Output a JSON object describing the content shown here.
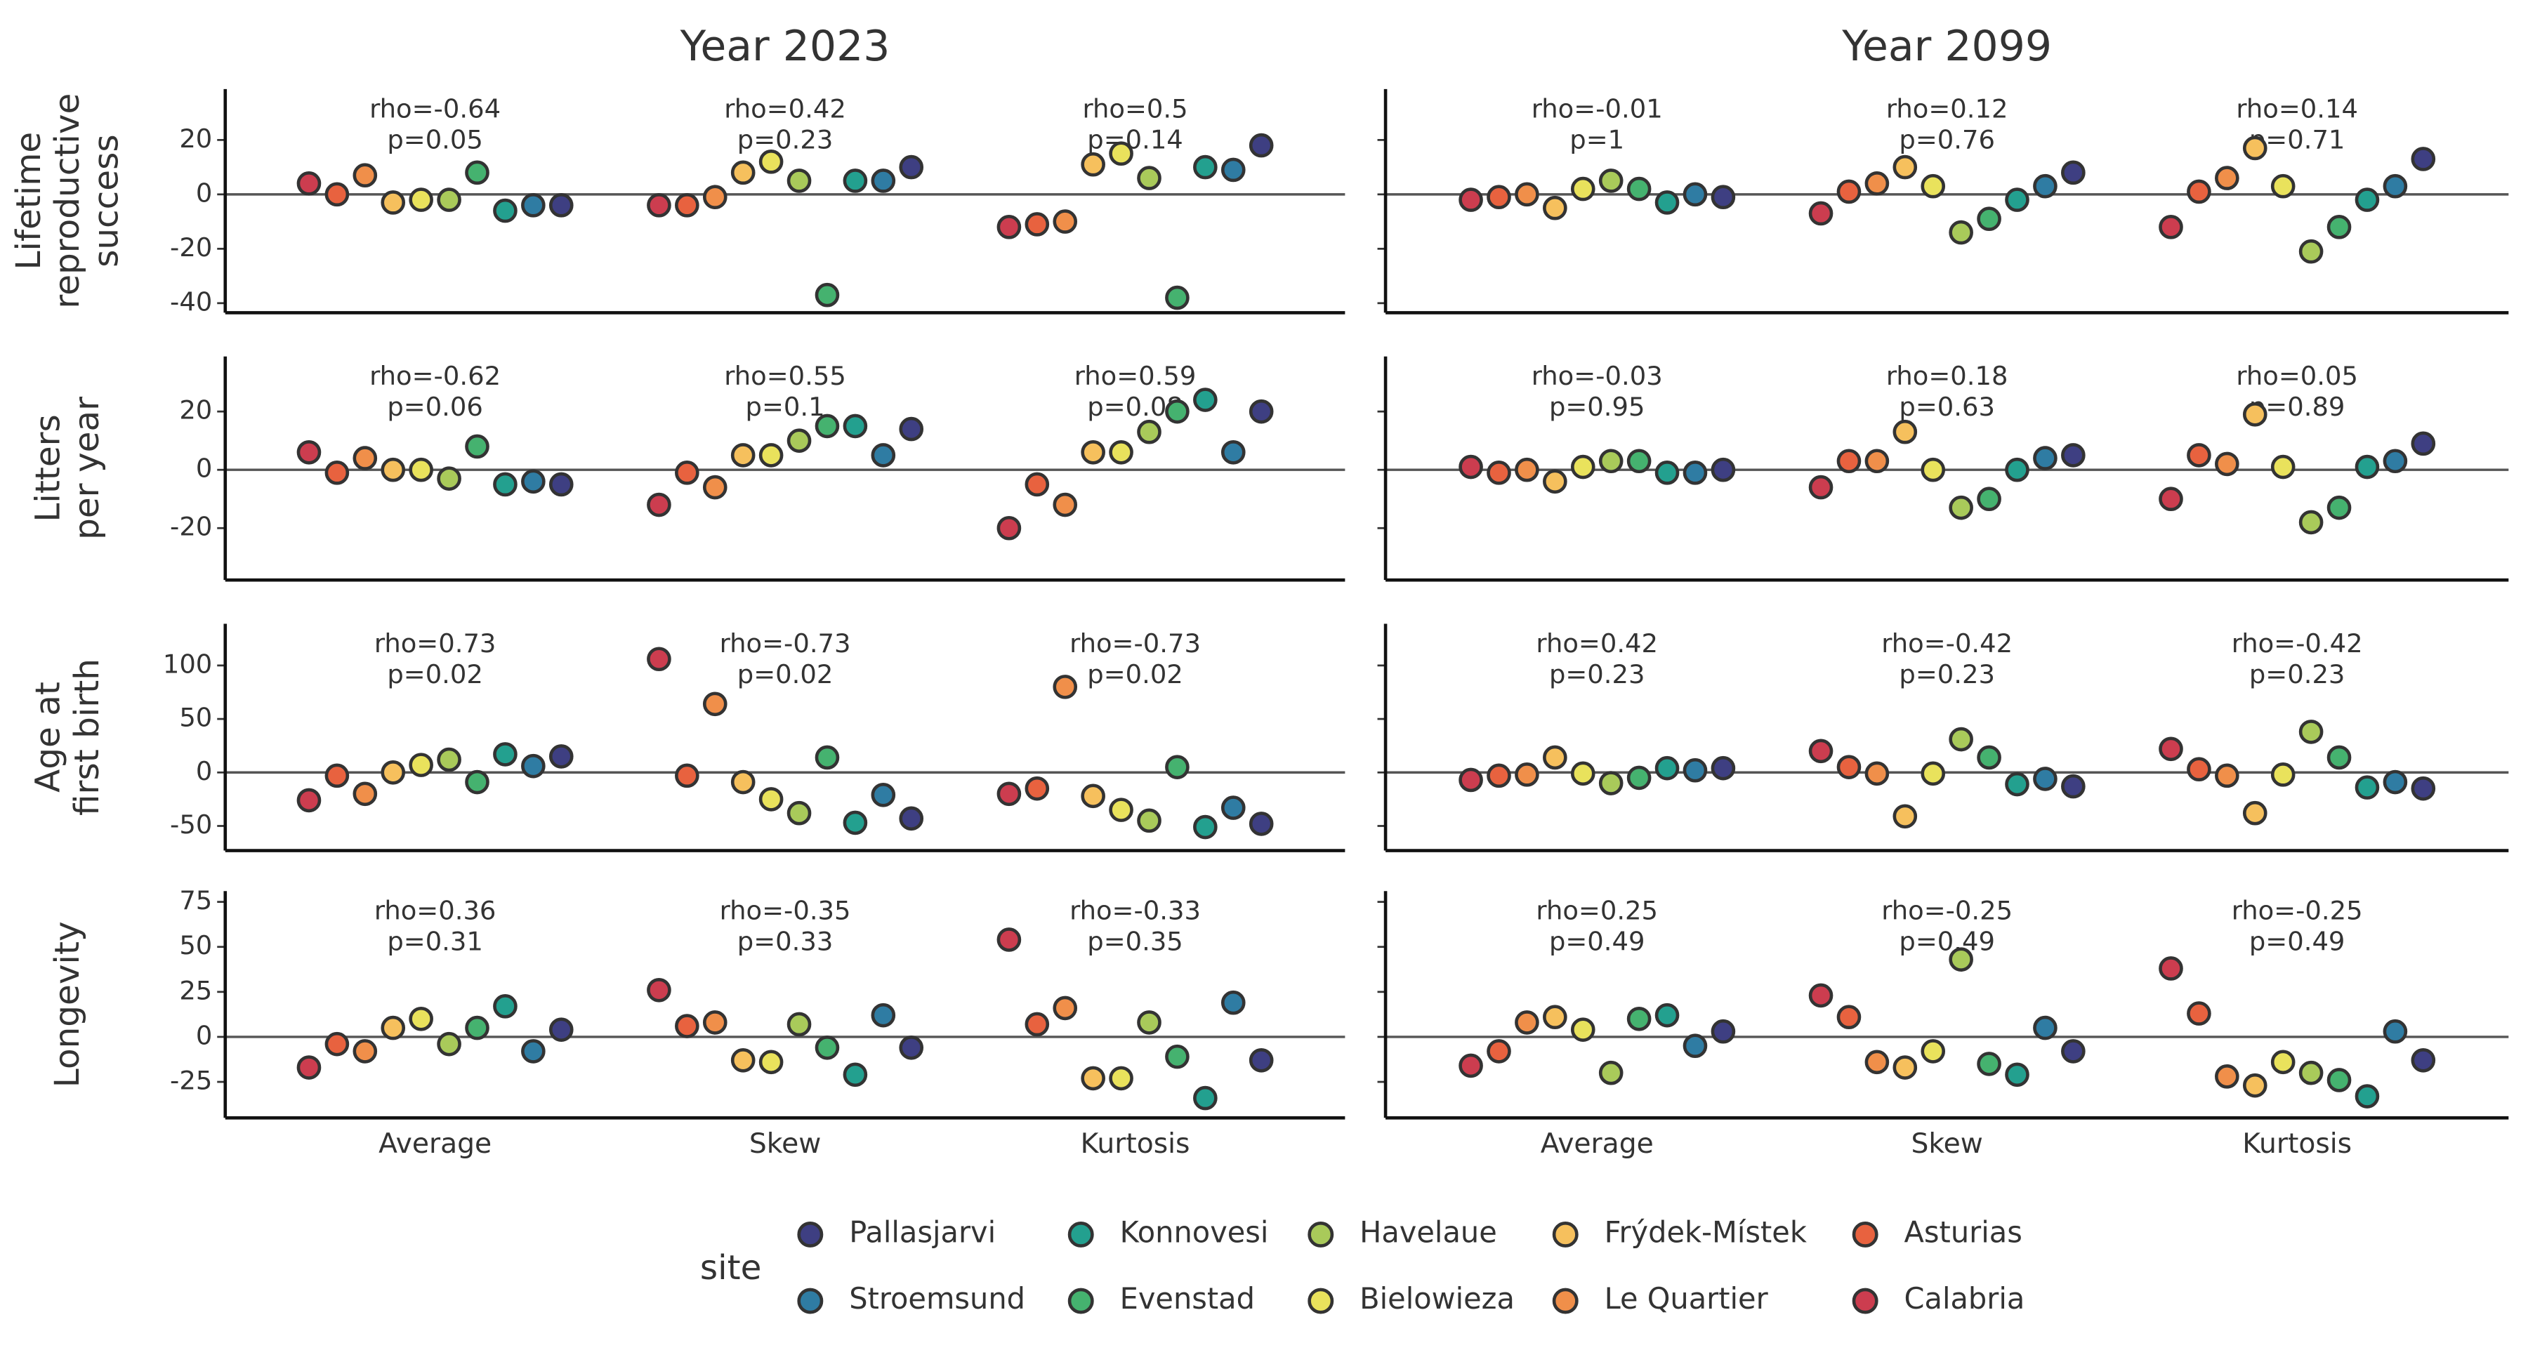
{
  "chart_data": {
    "type": "dot",
    "facet_columns": [
      "Year 2023",
      "Year 2099"
    ],
    "facet_rows": [
      [
        "Lifetime",
        "reproductive",
        "success"
      ],
      [
        "Litters",
        "per year"
      ],
      [
        "Age at",
        "first birth"
      ],
      [
        "Longevity"
      ]
    ],
    "categories": [
      "Average",
      "Skew",
      "Kurtosis"
    ],
    "legend_title": "site",
    "reference_line": 0,
    "series": [
      {
        "name": "Calabria",
        "color": "#cc3d4f"
      },
      {
        "name": "Asturias",
        "color": "#e8623f"
      },
      {
        "name": "Le Quartier",
        "color": "#f08f4a"
      },
      {
        "name": "Frýdek-Místek",
        "color": "#f6c05d"
      },
      {
        "name": "Bielowieza",
        "color": "#e9e25c"
      },
      {
        "name": "Havelaue",
        "color": "#a9ca5a"
      },
      {
        "name": "Evenstad",
        "color": "#45b26f"
      },
      {
        "name": "Konnovesi",
        "color": "#23a08f"
      },
      {
        "name": "Stroemsund",
        "color": "#2f7ca3"
      },
      {
        "name": "Pallasjarvi",
        "color": "#3e3f82"
      }
    ],
    "rows": [
      {
        "ylim": [
          -43.5,
          38.7
        ],
        "yticks": [
          -40,
          -20,
          0,
          20
        ],
        "panels": [
          {
            "values": [
              [
                4,
                0,
                7,
                -3,
                -2,
                -2,
                8,
                -6,
                -4,
                -4
              ],
              [
                -4,
                -4,
                -1,
                8,
                12,
                5,
                -37,
                5,
                5,
                10
              ],
              [
                -12,
                -11,
                -10,
                11,
                15,
                6,
                -38,
                10,
                9,
                18
              ]
            ],
            "labels": [
              [
                "rho=-0.64",
                "p=0.05"
              ],
              [
                "rho=0.42",
                "p=0.23"
              ],
              [
                "rho=0.5",
                "p=0.14"
              ]
            ]
          },
          {
            "values": [
              [
                -2,
                -1,
                0,
                -5,
                2,
                5,
                2,
                -3,
                0,
                -1
              ],
              [
                -7,
                1,
                4,
                10,
                3,
                -14,
                -9,
                -2,
                3,
                8
              ],
              [
                -12,
                1,
                6,
                17,
                3,
                -21,
                -12,
                -2,
                3,
                13
              ]
            ],
            "labels": [
              [
                "rho=-0.01",
                "p=1"
              ],
              [
                "rho=0.12",
                "p=0.76"
              ],
              [
                "rho=0.14",
                "p=0.71"
              ]
            ]
          }
        ]
      },
      {
        "ylim": [
          -37.8,
          38.9
        ],
        "yticks": [
          -20,
          0,
          20
        ],
        "panels": [
          {
            "values": [
              [
                6,
                -1,
                4,
                0,
                0,
                -3,
                8,
                -5,
                -4,
                -5
              ],
              [
                -12,
                -1,
                -6,
                5,
                5,
                10,
                15,
                15,
                5,
                14
              ],
              [
                -20,
                -5,
                -12,
                6,
                6,
                13,
                20,
                24,
                6,
                20
              ]
            ],
            "labels": [
              [
                "rho=-0.62",
                "p=0.06"
              ],
              [
                "rho=0.55",
                "p=0.1"
              ],
              [
                "rho=0.59",
                "p=0.08"
              ]
            ]
          },
          {
            "values": [
              [
                1,
                -1,
                0,
                -4,
                1,
                3,
                3,
                -1,
                -1,
                0
              ],
              [
                -6,
                3,
                3,
                13,
                0,
                -13,
                -10,
                0,
                4,
                5
              ],
              [
                -10,
                5,
                2,
                19,
                1,
                -18,
                -13,
                1,
                3,
                9
              ]
            ],
            "labels": [
              [
                "rho=-0.03",
                "p=0.95"
              ],
              [
                "rho=0.18",
                "p=0.63"
              ],
              [
                "rho=0.05",
                "p=0.89"
              ]
            ]
          }
        ]
      },
      {
        "ylim": [
          -73,
          139
        ],
        "yticks": [
          -50,
          0,
          50,
          100
        ],
        "panels": [
          {
            "values": [
              [
                -26,
                -3,
                -20,
                0,
                7,
                12,
                -9,
                17,
                6,
                15
              ],
              [
                106,
                -3,
                64,
                -9,
                -25,
                -38,
                14,
                -47,
                -21,
                -43
              ],
              [
                -20,
                -15,
                80,
                -22,
                -35,
                -45,
                5,
                -51,
                -33,
                -48
              ]
            ],
            "labels": [
              [
                "rho=0.73",
                "p=0.02"
              ],
              [
                "rho=-0.73",
                "p=0.02"
              ],
              [
                "rho=-0.73",
                "p=0.02"
              ]
            ]
          },
          {
            "values": [
              [
                -7,
                -3,
                -2,
                14,
                -1,
                -10,
                -5,
                4,
                2,
                4
              ],
              [
                20,
                5,
                -1,
                -41,
                -1,
                31,
                14,
                -11,
                -6,
                -13
              ],
              [
                22,
                3,
                -3,
                -38,
                -2,
                38,
                14,
                -14,
                -9,
                -15
              ]
            ],
            "labels": [
              [
                "rho=0.42",
                "p=0.23"
              ],
              [
                "rho=-0.42",
                "p=0.23"
              ],
              [
                "rho=-0.42",
                "p=0.23"
              ]
            ]
          }
        ]
      },
      {
        "ylim": [
          -45,
          81
        ],
        "yticks": [
          -25,
          0,
          25,
          50,
          75
        ],
        "panels": [
          {
            "values": [
              [
                -17,
                -4,
                -8,
                5,
                10,
                -4,
                5,
                17,
                -8,
                4
              ],
              [
                26,
                6,
                8,
                -13,
                -14,
                7,
                -6,
                -21,
                12,
                -6
              ],
              [
                54,
                7,
                16,
                -23,
                -23,
                8,
                -11,
                -34,
                19,
                -13
              ]
            ],
            "labels": [
              [
                "rho=0.36",
                "p=0.31"
              ],
              [
                "rho=-0.35",
                "p=0.33"
              ],
              [
                "rho=-0.33",
                "p=0.35"
              ]
            ]
          },
          {
            "values": [
              [
                -16,
                -8,
                8,
                11,
                4,
                -20,
                10,
                12,
                -5,
                3
              ],
              [
                23,
                11,
                -14,
                -17,
                -8,
                43,
                -15,
                -21,
                5,
                -8
              ],
              [
                38,
                13,
                -22,
                -27,
                -14,
                -20,
                -24,
                -33,
                3,
                -13
              ]
            ],
            "labels": [
              [
                "rho=0.25",
                "p=0.49"
              ],
              [
                "rho=-0.25",
                "p=0.49"
              ],
              [
                "rho=-0.25",
                "p=0.49"
              ]
            ]
          }
        ]
      }
    ]
  }
}
